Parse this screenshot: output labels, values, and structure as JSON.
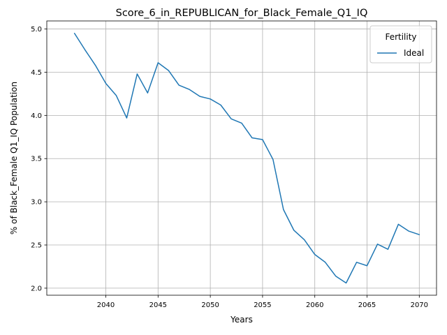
{
  "chart_data": {
    "type": "line",
    "title": "Score_6_in_REPUBLICAN_for_Black_Female_Q1_IQ",
    "xlabel": "Years",
    "ylabel": "% of Black_Female Q1_IQ Population",
    "xlim": [
      2034.35,
      2071.65
    ],
    "ylim": [
      1.9185,
      5.0935
    ],
    "xticks": [
      2040,
      2045,
      2050,
      2055,
      2060,
      2065,
      2070
    ],
    "xtick_labels": [
      "2040",
      "2045",
      "2050",
      "2055",
      "2060",
      "2065",
      "2070"
    ],
    "yticks": [
      2.0,
      2.5,
      3.0,
      3.5,
      4.0,
      4.5,
      5.0
    ],
    "ytick_labels": [
      "2.0",
      "2.5",
      "3.0",
      "3.5",
      "4.0",
      "4.5",
      "5.0"
    ],
    "grid": true,
    "legend": {
      "title": "Fertility",
      "placement": "top-right",
      "entries": [
        "Ideal"
      ]
    },
    "series": [
      {
        "name": "Ideal",
        "color": "#1f77b4",
        "x": [
          2037,
          2038,
          2039,
          2040,
          2041,
          2042,
          2043,
          2044,
          2045,
          2046,
          2047,
          2048,
          2049,
          2050,
          2051,
          2052,
          2053,
          2054,
          2055,
          2056,
          2057,
          2058,
          2059,
          2060,
          2061,
          2062,
          2063,
          2064,
          2065,
          2066,
          2067,
          2068,
          2069,
          2070
        ],
        "values": [
          4.95,
          4.76,
          4.58,
          4.37,
          4.23,
          3.97,
          4.48,
          4.26,
          4.61,
          4.52,
          4.35,
          4.3,
          4.22,
          4.19,
          4.12,
          3.96,
          3.91,
          3.74,
          3.72,
          3.49,
          2.91,
          2.67,
          2.56,
          2.39,
          2.3,
          2.14,
          2.06,
          2.3,
          2.26,
          2.51,
          2.45,
          2.74,
          2.66,
          2.62
        ]
      }
    ]
  }
}
